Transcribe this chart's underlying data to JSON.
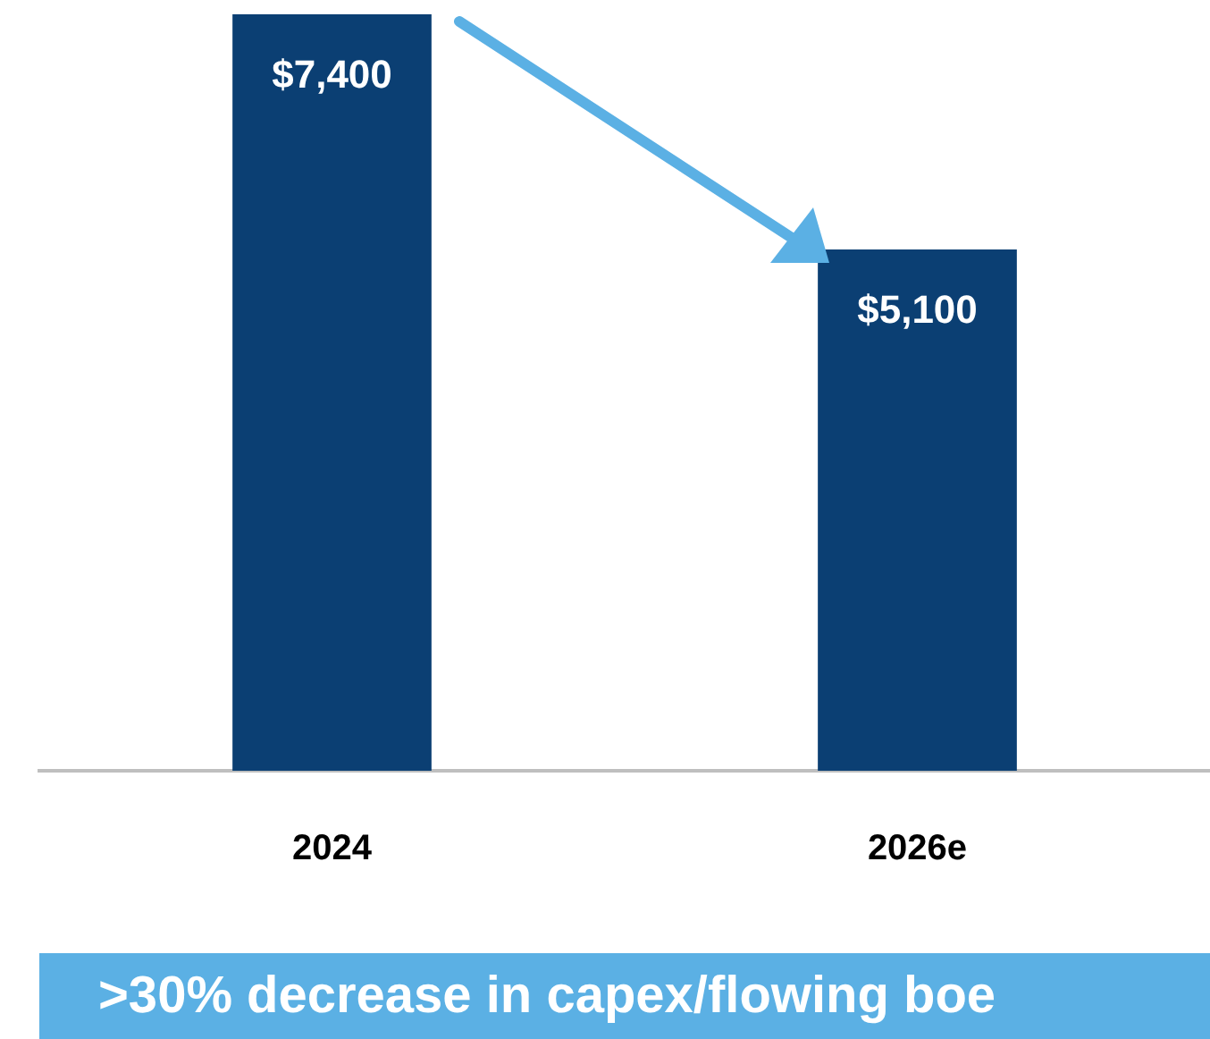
{
  "chart_data": {
    "type": "bar",
    "categories": [
      "2024",
      "2026e"
    ],
    "values": [
      7400,
      5100
    ],
    "value_labels": [
      "$7,400",
      "$5,100"
    ],
    "color": "#0b3f73",
    "ylim": [
      0,
      7400
    ],
    "grid": false,
    "legend": false,
    "annotations": [
      ">30% decrease in capex/flowing boe"
    ]
  }
}
